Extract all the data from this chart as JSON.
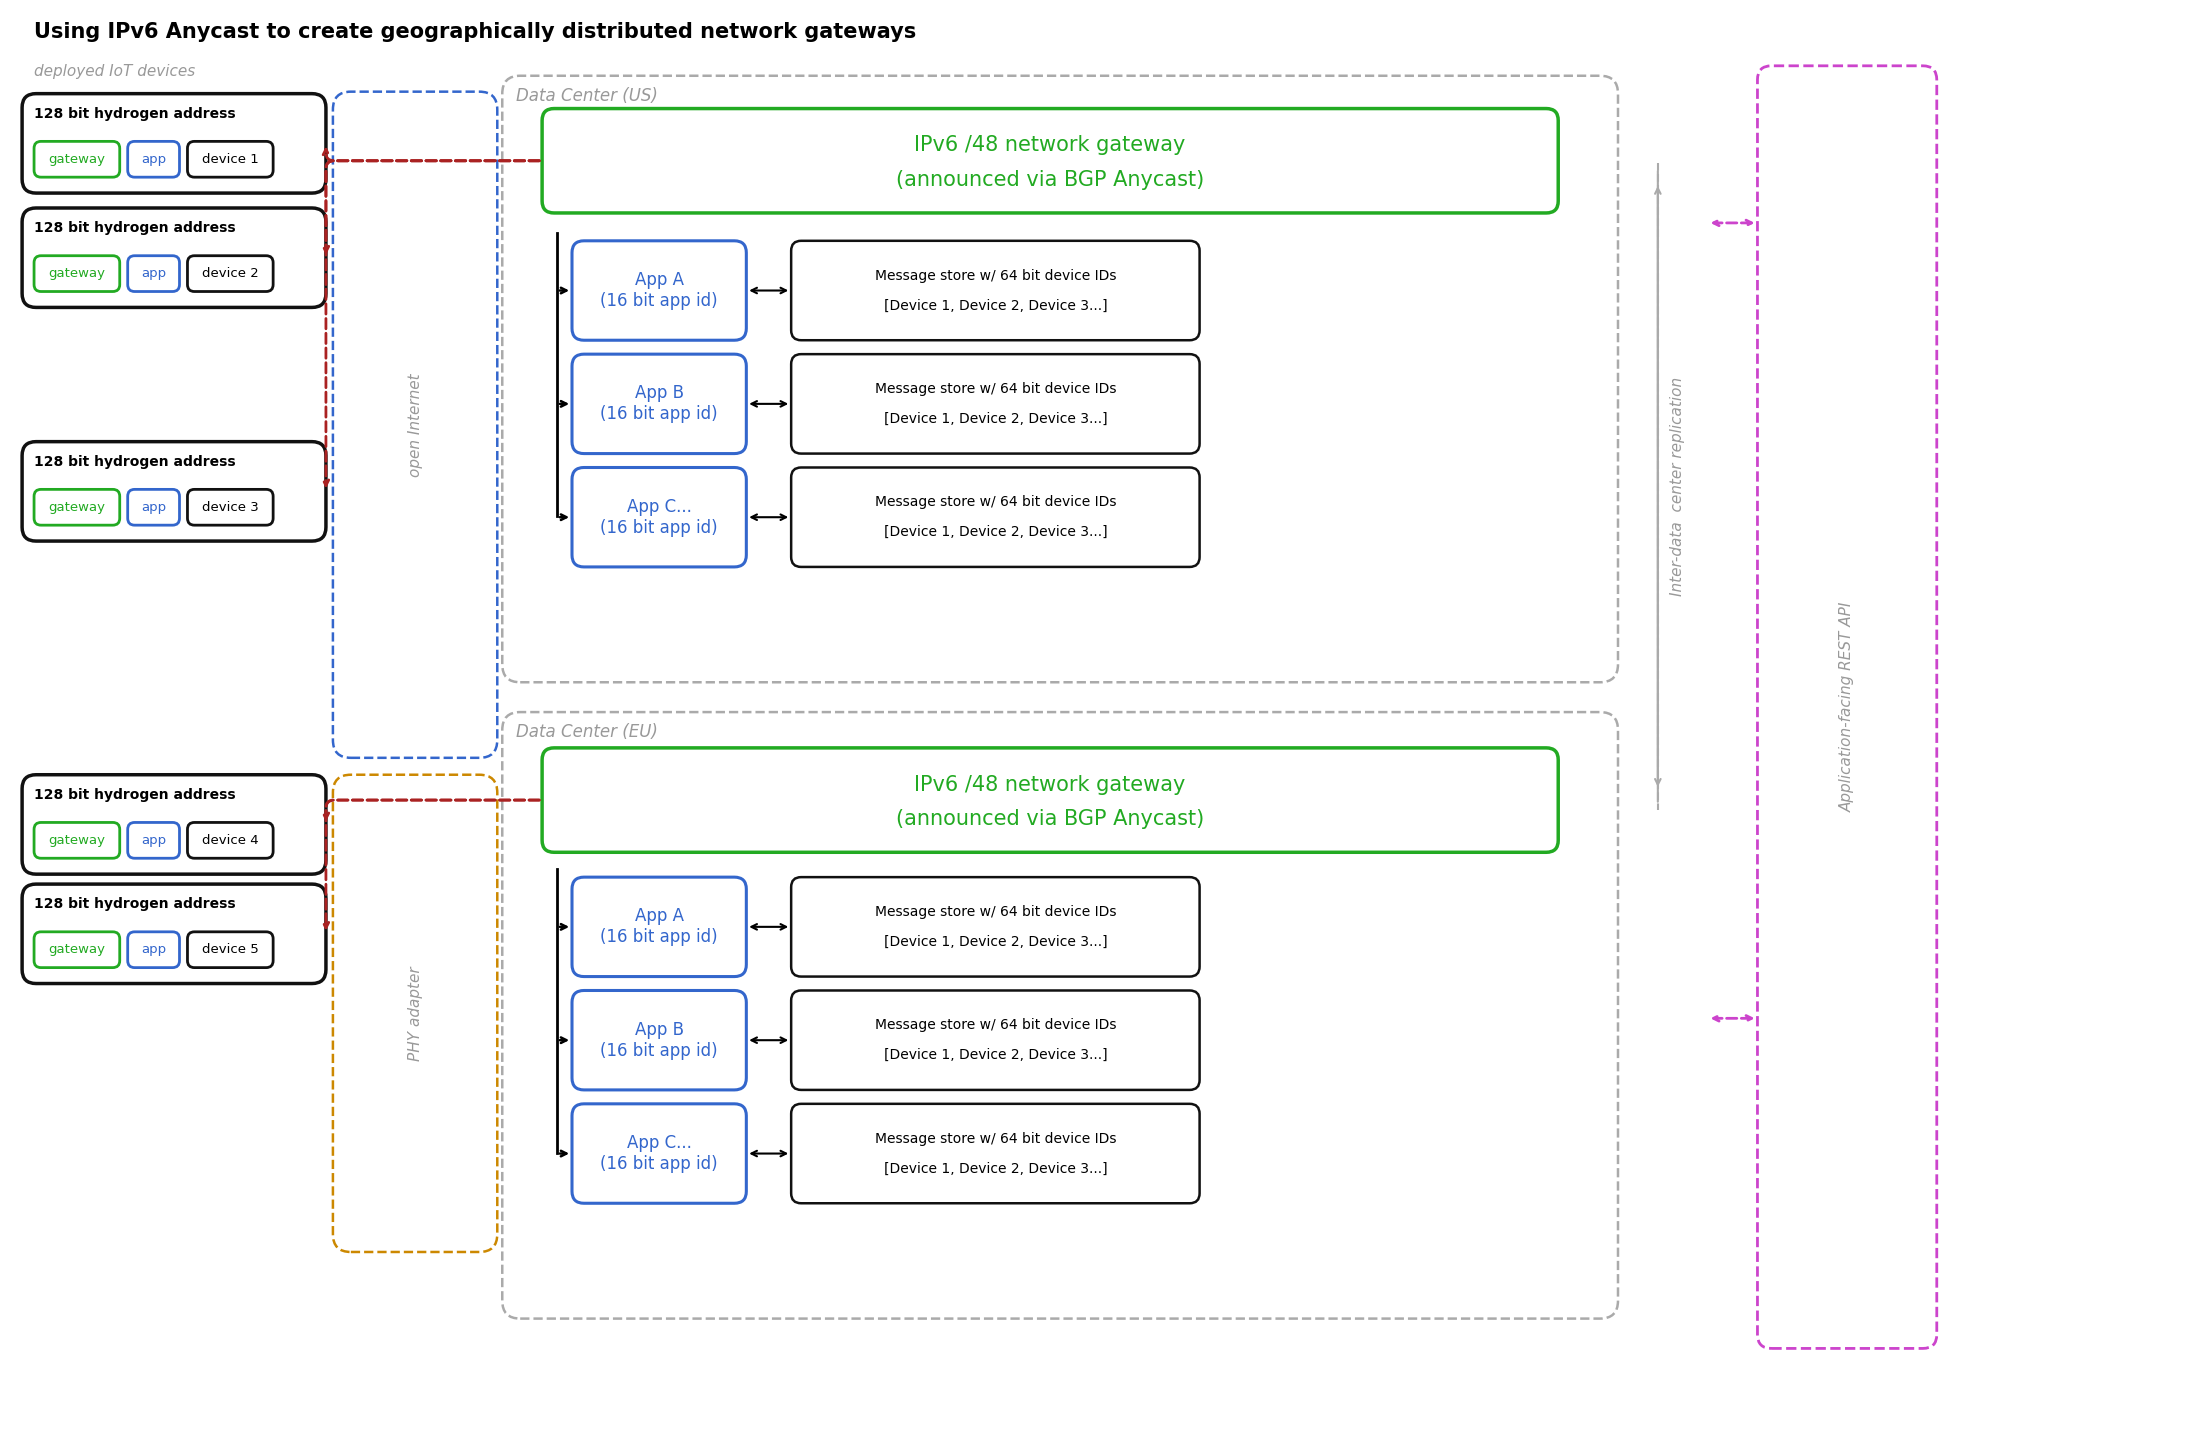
{
  "title": "Using IPv6 Anycast to create geographically distributed network gateways",
  "title_fontsize": 15,
  "bg_color": "#ffffff",
  "label_deployed": "deployed IoT devices",
  "label_dc_us": "Data Center (US)",
  "label_dc_eu": "Data Center (EU)",
  "label_open_internet": "open Internet",
  "label_phy_adapter": "PHY adapter",
  "label_inter_dc": "Inter-data  center replication",
  "label_rest_api": "Application-facing REST API",
  "gateway_text_line1": "IPv6 /48 network gateway",
  "gateway_text_line2": "(announced via BGP Anycast)",
  "app_labels": [
    "App A\n(16 bit app id)",
    "App B\n(16 bit app id)",
    "App C...\n(16 bit app id)"
  ],
  "msg_line1": "Message store w/ 64 bit device IDs",
  "msg_line2": "[Device 1, Device 2, Device 3...]",
  "color_green": "#22aa22",
  "color_blue": "#3366cc",
  "color_red": "#aa2222",
  "color_gray": "#999999",
  "color_gray_border": "#aaaaaa",
  "color_purple": "#cc44cc",
  "color_orange": "#cc8800",
  "color_black": "#111111"
}
